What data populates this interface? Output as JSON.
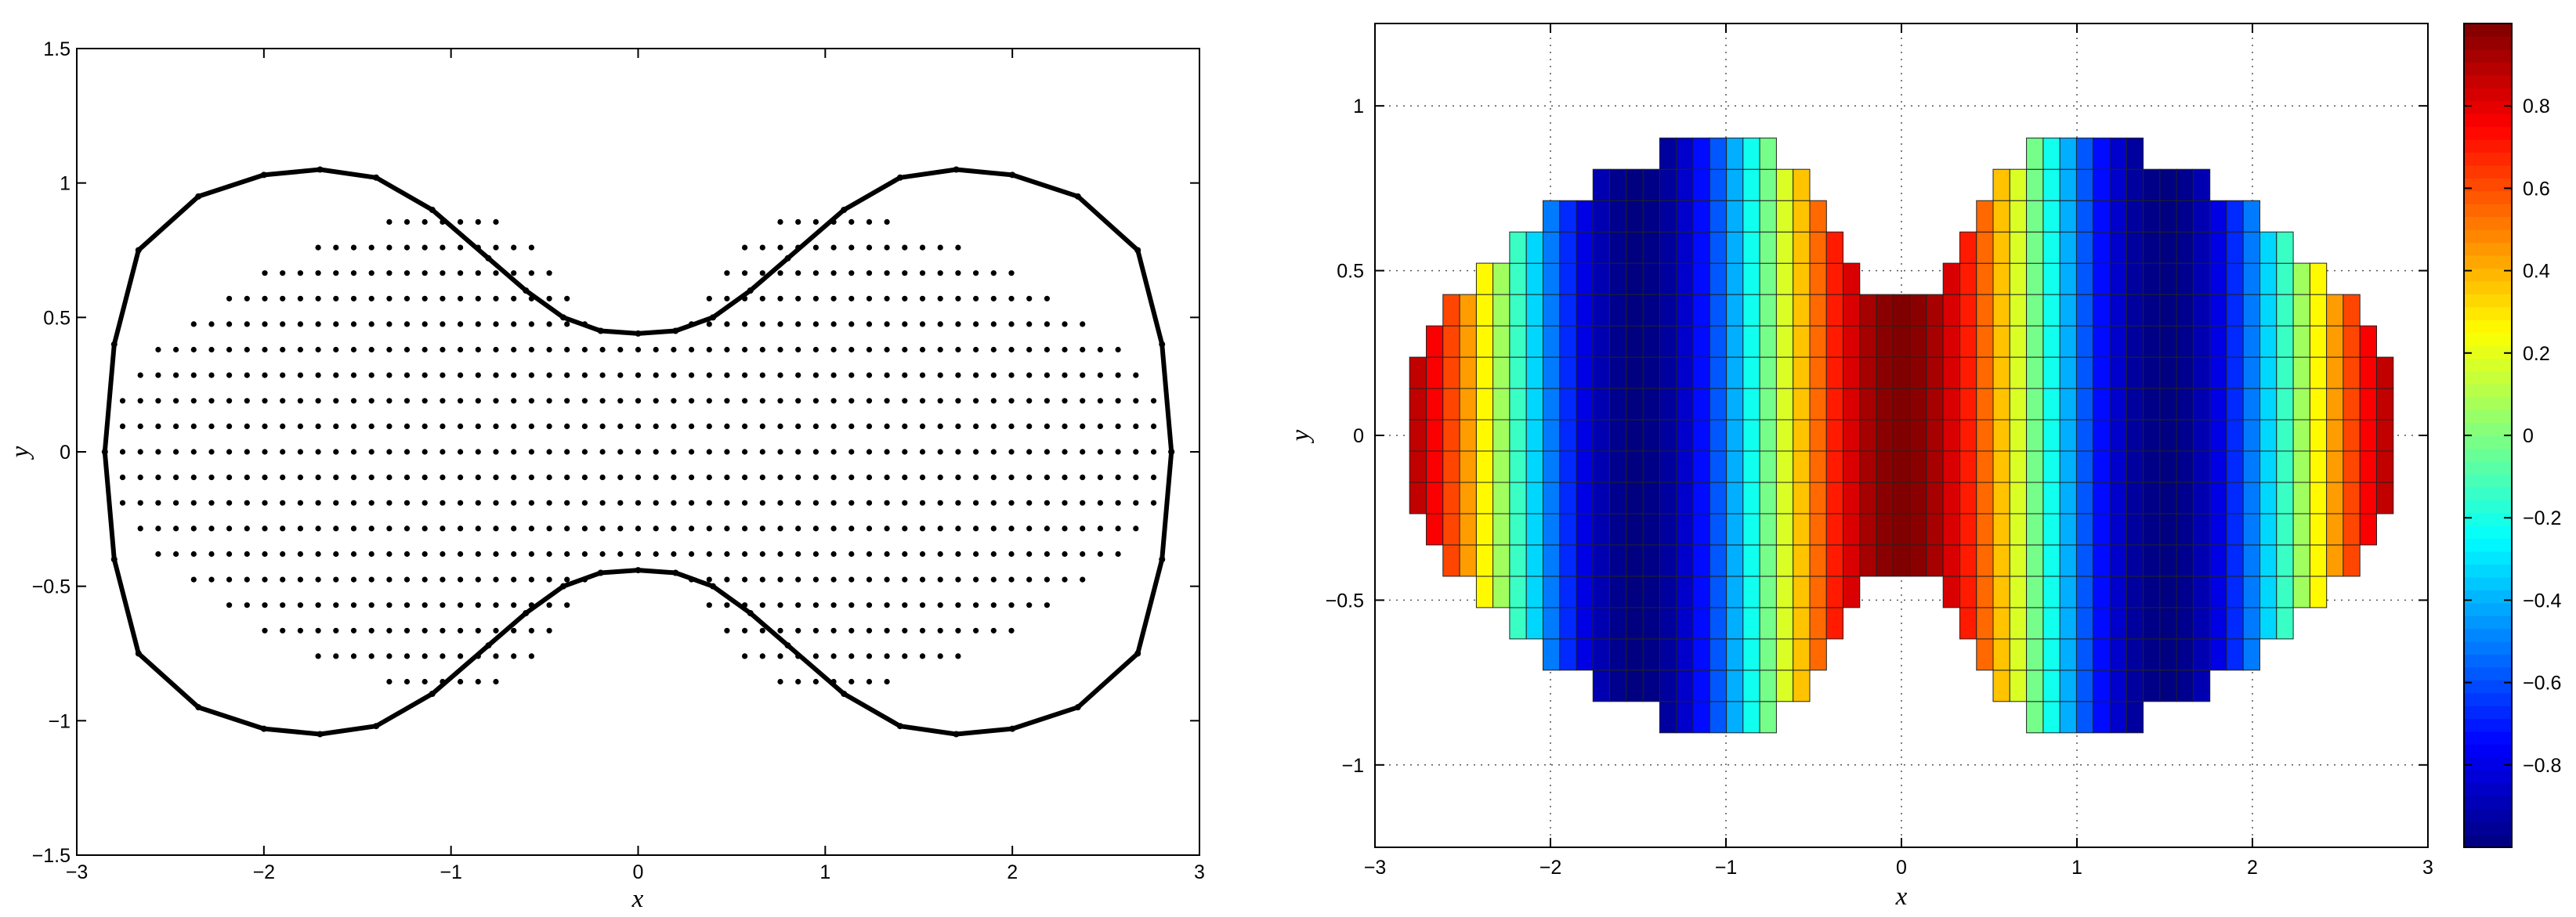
{
  "chart_data": [
    {
      "type": "scatter",
      "title": "",
      "xlabel": "x",
      "ylabel": "y",
      "xlim": [
        -3,
        3
      ],
      "ylim": [
        -1.5,
        1.5
      ],
      "grid": false,
      "xticks": [
        "−3",
        "−2",
        "−1",
        "0",
        "1",
        "2",
        "3"
      ],
      "yticks": [
        "−1.5",
        "−1",
        "−0.5",
        "0",
        "0.5",
        "1",
        "1.5"
      ],
      "series": [
        {
          "kind": "boundary",
          "x": [
            2.85,
            2.8,
            2.67,
            2.35,
            2.0,
            1.7,
            1.4,
            1.1,
            0.8,
            0.6,
            0.4,
            0.2,
            0.0,
            -0.2,
            -0.4,
            -0.6,
            -0.8,
            -1.1,
            -1.4,
            -1.7,
            -2.0,
            -2.35,
            -2.67,
            -2.8,
            -2.85,
            -2.8,
            -2.67,
            -2.35,
            -2.0,
            -1.7,
            -1.4,
            -1.1,
            -0.8,
            -0.6,
            -0.4,
            -0.2,
            0.0,
            0.2,
            0.4,
            0.6,
            0.8,
            1.1,
            1.4,
            1.7,
            2.0,
            2.35,
            2.67,
            2.8,
            2.85
          ],
          "y": [
            0.0,
            0.4,
            0.75,
            0.95,
            1.03,
            1.05,
            1.02,
            0.9,
            0.72,
            0.6,
            0.5,
            0.45,
            0.44,
            0.45,
            0.5,
            0.6,
            0.72,
            0.9,
            1.02,
            1.05,
            1.03,
            0.95,
            0.75,
            0.4,
            0.0,
            -0.4,
            -0.75,
            -0.95,
            -1.03,
            -1.05,
            -1.02,
            -0.9,
            -0.72,
            -0.6,
            -0.5,
            -0.45,
            -0.44,
            -0.45,
            -0.5,
            -0.6,
            -0.72,
            -0.9,
            -1.02,
            -1.05,
            -1.03,
            -0.95,
            -0.75,
            -0.4,
            0.0
          ]
        },
        {
          "kind": "interior-points",
          "grid_spacing": 0.095
        }
      ]
    },
    {
      "type": "heatmap",
      "title": "",
      "xlabel": "x",
      "ylabel": "y",
      "xlim": [
        -3,
        3
      ],
      "ylim": [
        -1.25,
        1.25
      ],
      "grid": true,
      "xticks": [
        "−3",
        "−2",
        "−1",
        "0",
        "1",
        "2",
        "3"
      ],
      "yticks": [
        "−1",
        "−0.5",
        "0",
        "0.5",
        "1"
      ],
      "cell_size": 0.095,
      "value": "cos(2.0944·x) over the interior of the dumbbell domain",
      "colorbar": {
        "colormap": "jet",
        "range": [
          -1,
          1
        ],
        "ticks": [
          "−0.8",
          "−0.6",
          "−0.4",
          "−0.2",
          "0",
          "0.2",
          "0.4",
          "0.6",
          "0.8"
        ]
      }
    }
  ]
}
